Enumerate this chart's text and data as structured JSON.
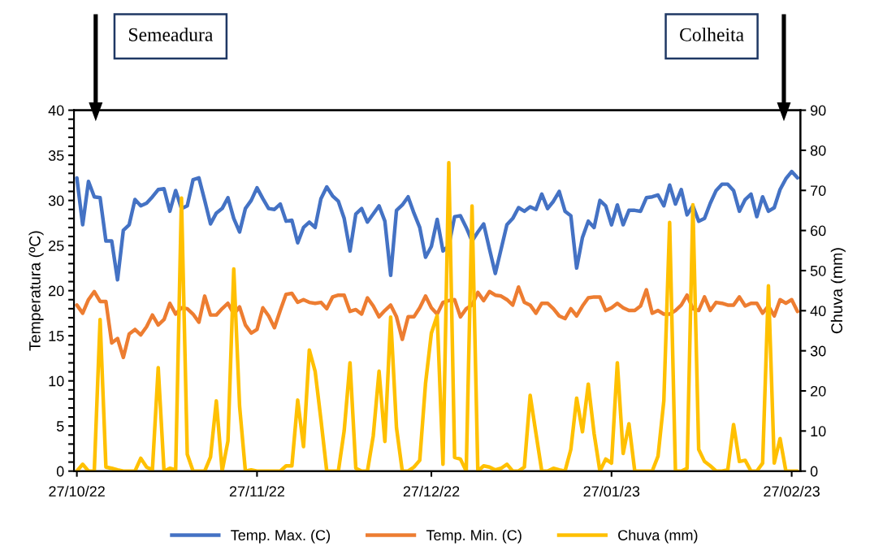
{
  "chart_data": {
    "type": "line",
    "ylabel": "Temperatura (ºC)",
    "y2label": "Chuva (mm)",
    "x": [
      "2022-10-27",
      "2022-10-28",
      "2022-10-29",
      "2022-10-30",
      "2022-10-31",
      "2022-11-01",
      "2022-11-02",
      "2022-11-03",
      "2022-11-04",
      "2022-11-05",
      "2022-11-06",
      "2022-11-07",
      "2022-11-08",
      "2022-11-09",
      "2022-11-10",
      "2022-11-11",
      "2022-11-12",
      "2022-11-13",
      "2022-11-14",
      "2022-11-15",
      "2022-11-16",
      "2022-11-17",
      "2022-11-18",
      "2022-11-19",
      "2022-11-20",
      "2022-11-21",
      "2022-11-22",
      "2022-11-23",
      "2022-11-24",
      "2022-11-25",
      "2022-11-26",
      "2022-11-27",
      "2022-11-28",
      "2022-11-29",
      "2022-11-30",
      "2022-12-01",
      "2022-12-02",
      "2022-12-03",
      "2022-12-04",
      "2022-12-05",
      "2022-12-06",
      "2022-12-07",
      "2022-12-08",
      "2022-12-09",
      "2022-12-10",
      "2022-12-11",
      "2022-12-12",
      "2022-12-13",
      "2022-12-14",
      "2022-12-15",
      "2022-12-16",
      "2022-12-17",
      "2022-12-18",
      "2022-12-19",
      "2022-12-20",
      "2022-12-21",
      "2022-12-22",
      "2022-12-23",
      "2022-12-24",
      "2022-12-25",
      "2022-12-26",
      "2022-12-27",
      "2022-12-28",
      "2022-12-29",
      "2022-12-30",
      "2022-12-31",
      "2023-01-01",
      "2023-01-02",
      "2023-01-03",
      "2023-01-04",
      "2023-01-05",
      "2023-01-06",
      "2023-01-07",
      "2023-01-08",
      "2023-01-09",
      "2023-01-10",
      "2023-01-11",
      "2023-01-12",
      "2023-01-13",
      "2023-01-14",
      "2023-01-15",
      "2023-01-16",
      "2023-01-17",
      "2023-01-18",
      "2023-01-19",
      "2023-01-20",
      "2023-01-21",
      "2023-01-22",
      "2023-01-23",
      "2023-01-24",
      "2023-01-25",
      "2023-01-26",
      "2023-01-27",
      "2023-01-28",
      "2023-01-29",
      "2023-01-30",
      "2023-01-31",
      "2023-02-01",
      "2023-02-02",
      "2023-02-03",
      "2023-02-04",
      "2023-02-05",
      "2023-02-06",
      "2023-02-07",
      "2023-02-08",
      "2023-02-09",
      "2023-02-10",
      "2023-02-11",
      "2023-02-12",
      "2023-02-13",
      "2023-02-14",
      "2023-02-15",
      "2023-02-16",
      "2023-02-17",
      "2023-02-18",
      "2023-02-19",
      "2023-02-20",
      "2023-02-21",
      "2023-02-22",
      "2023-02-23",
      "2023-02-24",
      "2023-02-25",
      "2023-02-26",
      "2023-02-27",
      "2023-02-28"
    ],
    "series": [
      {
        "name": "Temp. Max. (C)",
        "color": "#4472c4",
        "values": [
          32.5,
          27.3,
          32.1,
          30.4,
          30.3,
          25.5,
          25.5,
          21.2,
          26.7,
          27.3,
          30.1,
          29.4,
          29.7,
          30.4,
          31.2,
          31.3,
          28.8,
          31.1,
          29.1,
          29.4,
          32.3,
          32.5,
          30.0,
          27.4,
          28.6,
          29.1,
          30.3,
          28.0,
          26.5,
          29.1,
          30.0,
          31.4,
          30.2,
          29.1,
          29.0,
          29.6,
          27.7,
          27.8,
          25.3,
          27.0,
          27.6,
          27.0,
          30.2,
          31.5,
          30.5,
          29.9,
          28.0,
          24.4,
          28.5,
          29.1,
          27.6,
          28.5,
          29.4,
          27.7,
          21.7,
          28.9,
          29.5,
          30.4,
          28.6,
          27.0,
          23.7,
          24.9,
          27.9,
          24.4,
          25.0,
          28.2,
          28.3,
          27.0,
          25.5,
          26.5,
          27.4,
          24.6,
          21.9,
          24.6,
          27.3,
          28.0,
          29.2,
          28.8,
          29.3,
          29.0,
          30.7,
          29.1,
          29.9,
          31.0,
          28.8,
          28.3,
          22.5,
          25.9,
          27.7,
          27.0,
          30.0,
          29.4,
          27.3,
          29.5,
          27.3,
          28.9,
          28.9,
          28.8,
          30.3,
          30.4,
          30.6,
          29.4,
          31.7,
          29.6,
          31.2,
          28.4,
          29.4,
          27.7,
          28.0,
          29.7,
          31.1,
          31.8,
          31.8,
          31.1,
          28.8,
          30.1,
          30.7,
          28.2,
          30.4,
          28.8,
          29.2,
          31.2,
          32.4,
          33.2,
          32.5
        ]
      },
      {
        "name": "Temp. Min. (C)",
        "color": "#ed7d31",
        "values": [
          18.4,
          17.5,
          19.0,
          19.9,
          18.8,
          18.8,
          14.2,
          14.7,
          12.6,
          15.2,
          15.7,
          15.1,
          16.0,
          17.3,
          16.2,
          16.8,
          18.6,
          17.4,
          18.1,
          18.0,
          17.4,
          16.5,
          19.4,
          17.3,
          17.3,
          18.0,
          18.6,
          17.4,
          18.2,
          16.2,
          15.3,
          15.7,
          18.1,
          17.2,
          15.9,
          17.8,
          19.6,
          19.7,
          18.7,
          19.0,
          18.7,
          18.6,
          18.7,
          18.0,
          19.3,
          19.5,
          19.5,
          17.7,
          17.9,
          17.4,
          19.2,
          18.3,
          17.1,
          17.8,
          18.4,
          17.1,
          14.6,
          17.1,
          17.1,
          18.1,
          19.4,
          18.1,
          17.4,
          18.7,
          18.9,
          19.0,
          17.1,
          18.0,
          18.4,
          19.8,
          18.9,
          19.9,
          19.5,
          19.4,
          19.0,
          18.4,
          20.4,
          18.7,
          18.4,
          17.5,
          18.6,
          18.6,
          18.0,
          17.2,
          16.9,
          18.0,
          17.2,
          18.3,
          19.2,
          19.3,
          19.3,
          17.8,
          18.1,
          18.6,
          18.1,
          17.8,
          17.8,
          18.3,
          20.1,
          17.5,
          17.8,
          17.4,
          17.4,
          17.8,
          18.4,
          19.5,
          18.0,
          17.8,
          19.3,
          17.8,
          18.7,
          18.6,
          18.4,
          18.4,
          19.3,
          18.3,
          18.6,
          18.6,
          17.5,
          18.3,
          17.2,
          19.0,
          18.6,
          19.0,
          17.7
        ]
      },
      {
        "name": "Chuva (mm)",
        "color": "#ffc000",
        "axis": "y2",
        "values": [
          0,
          1.7,
          0,
          0,
          37.8,
          1.0,
          0.7,
          0.3,
          0,
          0,
          0,
          3.2,
          1.0,
          0.3,
          25.8,
          0,
          0.7,
          0.3,
          68.1,
          4.2,
          0,
          0,
          0,
          3.5,
          17.5,
          0,
          7.5,
          50.4,
          16.2,
          0,
          0.3,
          0,
          0,
          0,
          0,
          0,
          1.3,
          1.3,
          17.7,
          6.1,
          30.2,
          24.9,
          12.8,
          0,
          0,
          0,
          10.1,
          27.0,
          0.7,
          0,
          0,
          8.8,
          24.9,
          7.4,
          38.4,
          10.8,
          0,
          0,
          1.0,
          2.7,
          21.9,
          34.4,
          38.8,
          1.7,
          76.9,
          3.4,
          3.0,
          0,
          66.1,
          0,
          1.3,
          1.0,
          0.3,
          0.7,
          1.7,
          0,
          0,
          1.0,
          18.9,
          9.4,
          0,
          0,
          0.7,
          0.3,
          0,
          5.4,
          18.2,
          9.8,
          21.7,
          9.4,
          0,
          3.0,
          2.0,
          27.0,
          4.4,
          11.8,
          0,
          0,
          0,
          0,
          3.7,
          17.5,
          62.0,
          0,
          0,
          0.7,
          66.4,
          5.4,
          2.4,
          1.3,
          0,
          0,
          0.3,
          11.6,
          2.4,
          2.7,
          0,
          0,
          2.0,
          46.2,
          2.0,
          8.1,
          0,
          0,
          0
        ]
      }
    ],
    "xlim": [
      "2022-10-26T12:00",
      "2023-02-28T12:00"
    ],
    "xticks": [
      {
        "value": "2022-10-27",
        "label": "27/10/22"
      },
      {
        "value": "2022-11-27",
        "label": "27/11/22"
      },
      {
        "value": "2022-12-27",
        "label": "27/12/22"
      },
      {
        "value": "2023-01-27",
        "label": "27/01/23"
      },
      {
        "value": "2023-02-27",
        "label": "27/02/23"
      }
    ],
    "ylim": [
      0,
      40
    ],
    "yticks": [
      0,
      {
        "value": 1,
        "label": null
      },
      {
        "value": 2,
        "label": null
      },
      {
        "value": 3,
        "label": null
      },
      {
        "value": 4,
        "label": null
      },
      5,
      {
        "value": 6,
        "label": null
      },
      {
        "value": 7,
        "label": null
      },
      {
        "value": 8,
        "label": null
      },
      {
        "value": 9,
        "label": null
      },
      10,
      {
        "value": 11,
        "label": null
      },
      {
        "value": 12,
        "label": null
      },
      {
        "value": 13,
        "label": null
      },
      {
        "value": 14,
        "label": null
      },
      15,
      {
        "value": 16,
        "label": null
      },
      {
        "value": 17,
        "label": null
      },
      {
        "value": 18,
        "label": null
      },
      {
        "value": 19,
        "label": null
      },
      20,
      {
        "value": 21,
        "label": null
      },
      {
        "value": 22,
        "label": null
      },
      {
        "value": 23,
        "label": null
      },
      {
        "value": 24,
        "label": null
      },
      25,
      {
        "value": 26,
        "label": null
      },
      {
        "value": 27,
        "label": null
      },
      {
        "value": 28,
        "label": null
      },
      {
        "value": 29,
        "label": null
      },
      30,
      {
        "value": 31,
        "label": null
      },
      {
        "value": 32,
        "label": null
      },
      {
        "value": 33,
        "label": null
      },
      {
        "value": 34,
        "label": null
      },
      35,
      {
        "value": 36,
        "label": null
      },
      {
        "value": 37,
        "label": null
      },
      {
        "value": 38,
        "label": null
      },
      {
        "value": 39,
        "label": null
      },
      40
    ],
    "y2lim": [
      0,
      90
    ],
    "y2ticks": [
      0,
      10,
      20,
      30,
      40,
      50,
      60,
      70,
      80,
      90
    ],
    "annotations": [
      "Semeadura",
      "Colheita"
    ],
    "grid": false,
    "legend": "bottom"
  }
}
